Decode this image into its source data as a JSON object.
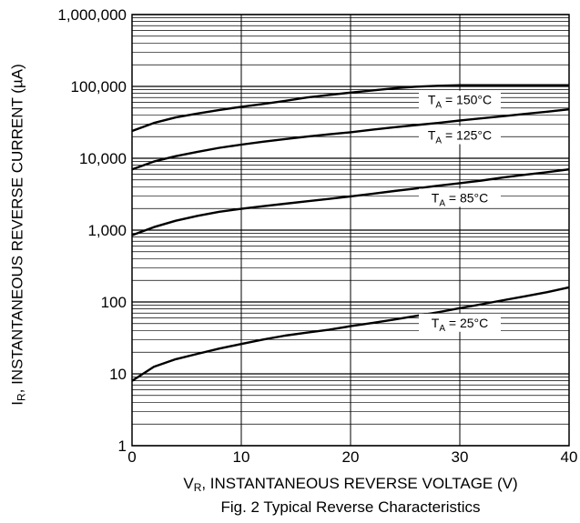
{
  "chart_data": {
    "type": "line",
    "title": "",
    "caption": "Fig. 2 Typical Reverse Characteristics",
    "xlabel": {
      "symbol": "V",
      "sub": "R",
      "text": ", INSTANTANEOUS REVERSE VOLTAGE (V)"
    },
    "ylabel": {
      "symbol": "I",
      "sub": "R",
      "text": ", INSTANTANEOUS REVERSE CURRENT (µA)"
    },
    "xlim": [
      0,
      40
    ],
    "ylim": [
      1,
      1000000
    ],
    "yscale": "log",
    "grid": true,
    "xticks": [
      "0",
      "10",
      "20",
      "30",
      "40"
    ],
    "yticks": [
      "1",
      "10",
      "100",
      "1,000",
      "10,000",
      "100,000",
      "1,000,000"
    ],
    "series": [
      {
        "name": "T_A = 150°C",
        "label_main": "T",
        "label_sub": "A",
        "label_rest": " = 150°C",
        "label_x": 30,
        "x": [
          0,
          2,
          4,
          6,
          8,
          10,
          12,
          14,
          16,
          18,
          20,
          22,
          24,
          26,
          28,
          30,
          32,
          34,
          36,
          38,
          40
        ],
        "y": [
          24000,
          31000,
          37000,
          42000,
          47000,
          52000,
          57000,
          63000,
          70000,
          76000,
          82000,
          88000,
          94000,
          99000,
          102000,
          104000,
          104000,
          104000,
          104000,
          104000,
          104000
        ]
      },
      {
        "name": "T_A = 125°C",
        "label_main": "T",
        "label_sub": "A",
        "label_rest": " = 125°C",
        "label_x": 30,
        "x": [
          0,
          2,
          4,
          6,
          8,
          10,
          12,
          14,
          16,
          18,
          20,
          22,
          24,
          26,
          28,
          30,
          32,
          34,
          36,
          38,
          40
        ],
        "y": [
          7000,
          9000,
          10700,
          12300,
          14000,
          15500,
          17000,
          18500,
          20000,
          21500,
          23000,
          25000,
          27000,
          29000,
          31000,
          33500,
          36000,
          38500,
          41500,
          44500,
          48000
        ]
      },
      {
        "name": "T_A = 85°C",
        "label_main": "T",
        "label_sub": "A",
        "label_rest": " = 85°C",
        "label_x": 30,
        "x": [
          0,
          2,
          4,
          6,
          8,
          10,
          12,
          14,
          16,
          18,
          20,
          22,
          24,
          26,
          28,
          30,
          32,
          34,
          36,
          38,
          40
        ],
        "y": [
          850,
          1100,
          1350,
          1580,
          1800,
          1980,
          2150,
          2330,
          2520,
          2720,
          2950,
          3200,
          3500,
          3800,
          4150,
          4500,
          4900,
          5400,
          5900,
          6400,
          7000
        ]
      },
      {
        "name": "T_A = 25°C",
        "label_main": "T",
        "label_sub": "A",
        "label_rest": " = 25°C",
        "label_x": 30,
        "x": [
          0,
          2,
          4,
          6,
          8,
          10,
          12,
          14,
          16,
          18,
          20,
          22,
          24,
          26,
          28,
          30,
          32,
          34,
          36,
          38,
          40
        ],
        "y": [
          8,
          12.5,
          16,
          19,
          22.5,
          26,
          30,
          34,
          37.5,
          41,
          46,
          51,
          57,
          64,
          72,
          82,
          93,
          106,
          120,
          137,
          160
        ]
      }
    ]
  }
}
